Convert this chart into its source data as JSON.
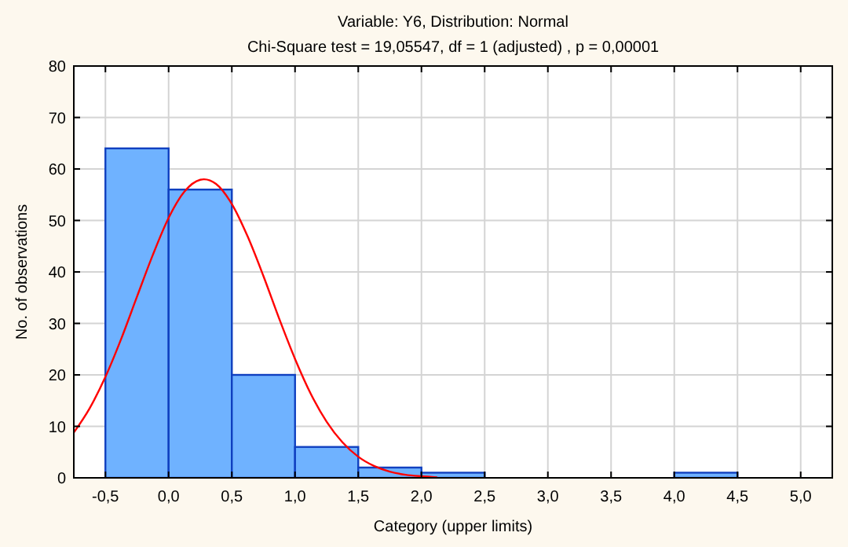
{
  "chart_data": {
    "type": "histogram",
    "title": "Variable: Y6, Distribution: Normal",
    "subtitle": "Chi-Square test = 19,05547, df = 1 (adjusted) , p = 0,00001",
    "xlabel": "Category (upper limits)",
    "ylabel": "No. of observations",
    "bins": [
      -0.5,
      0,
      0.5,
      1,
      1.5,
      2,
      2.5,
      3,
      3.5,
      4,
      4.5
    ],
    "values": [
      64,
      56,
      20,
      6,
      2,
      1,
      null,
      null,
      null,
      1
    ],
    "color": "#6fb2ff",
    "series": [
      {
        "type": "line",
        "color": "#ff0000",
        "x": [
          -0.75,
          -0.625,
          -0.5,
          -0.375,
          -0.25,
          -0.125,
          0,
          0.125,
          0.25,
          0.28,
          0.375,
          0.5,
          0.625,
          0.75,
          0.875,
          1,
          1.125,
          1.25,
          1.375,
          1.5,
          1.625,
          1.75,
          1.875,
          2,
          2.125
        ],
        "values": [
          8.8,
          13.5,
          19.6,
          27,
          35.2,
          43.3,
          50.5,
          55.6,
          57.9,
          58,
          57.1,
          53.2,
          46.9,
          39.2,
          30.9,
          23.1,
          16.3,
          10.9,
          6.9,
          4.1,
          2.3,
          1.2,
          0.6,
          0.3,
          0.1
        ]
      }
    ],
    "xlim": [
      -0.75,
      5.25
    ],
    "xticks": [
      {
        "value": -0.5,
        "label": "-0,5"
      },
      {
        "value": 0,
        "label": "0,0"
      },
      {
        "value": 0.5,
        "label": "0,5"
      },
      {
        "value": 1,
        "label": "1,0"
      },
      {
        "value": 1.5,
        "label": "1,5"
      },
      {
        "value": 2,
        "label": "2,0"
      },
      {
        "value": 2.5,
        "label": "2,5"
      },
      {
        "value": 3,
        "label": "3,0"
      },
      {
        "value": 3.5,
        "label": "3,5"
      },
      {
        "value": 4,
        "label": "4,0"
      },
      {
        "value": 4.5,
        "label": "4,5"
      },
      {
        "value": 5,
        "label": "5,0"
      }
    ],
    "ylim": [
      0,
      80
    ],
    "yticks": [
      0,
      10,
      20,
      30,
      40,
      50,
      60,
      70,
      80
    ],
    "grid": true
  }
}
